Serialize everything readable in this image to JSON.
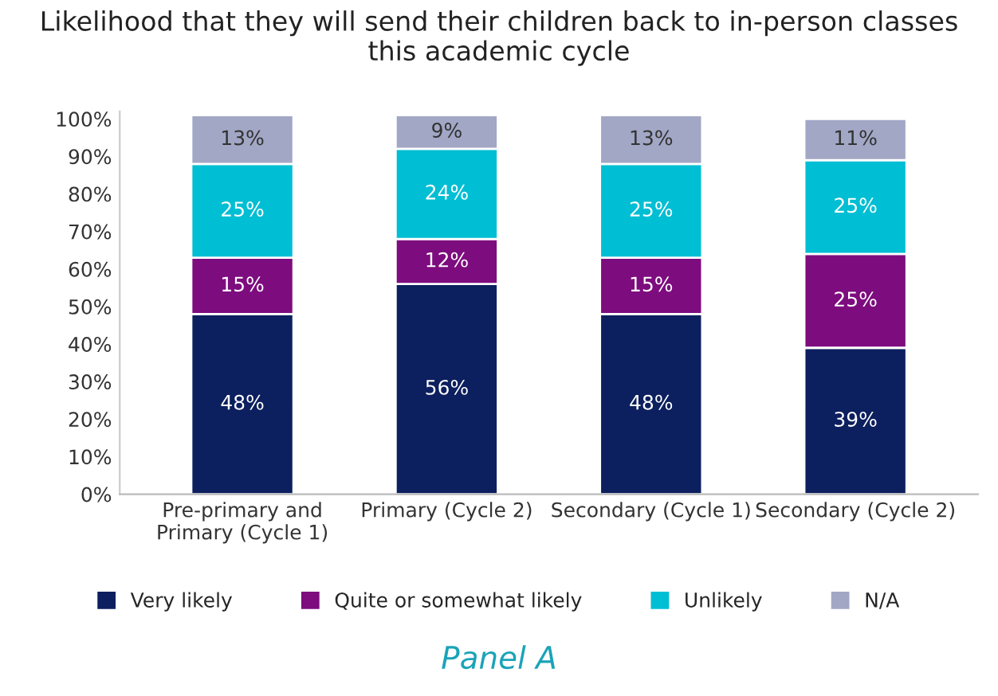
{
  "chart_data": {
    "type": "bar",
    "stacked": true,
    "title": "Likelihood that they will send their children back to in-person classes\nthis academic cycle",
    "categories": [
      "Pre-primary and\nPrimary (Cycle 1)",
      "Primary (Cycle 2)",
      "Secondary (Cycle 1)",
      "Secondary (Cycle 2)"
    ],
    "series": [
      {
        "name": "Very likely",
        "color": "#0c1f5e",
        "values": [
          48,
          56,
          48,
          39
        ],
        "value_labels": [
          "48%",
          "56%",
          "48%",
          "39%"
        ]
      },
      {
        "name": "Quite or somewhat likely",
        "color": "#7d0c7e",
        "values": [
          15,
          12,
          15,
          25
        ],
        "value_labels": [
          "15%",
          "12%",
          "15%",
          "25%"
        ]
      },
      {
        "name": "Unlikely",
        "color": "#00bed3",
        "values": [
          25,
          24,
          25,
          25
        ],
        "value_labels": [
          "25%",
          "24%",
          "25%",
          "25%"
        ]
      },
      {
        "name": "N/A",
        "color": "#a2a7c5",
        "values": [
          13,
          9,
          13,
          11
        ],
        "value_labels": [
          "13%",
          "9%",
          "13%",
          "11%"
        ]
      }
    ],
    "ylim": [
      0,
      102
    ],
    "yticks": [
      {
        "value": 0,
        "label": "0%"
      },
      {
        "value": 10,
        "label": "10%"
      },
      {
        "value": 20,
        "label": "20%"
      },
      {
        "value": 30,
        "label": "30%"
      },
      {
        "value": 40,
        "label": "40%"
      },
      {
        "value": 50,
        "label": "50%"
      },
      {
        "value": 60,
        "label": "60%"
      },
      {
        "value": 70,
        "label": "70%"
      },
      {
        "value": 80,
        "label": "80%"
      },
      {
        "value": 90,
        "label": "90%"
      },
      {
        "value": 100,
        "label": "100%"
      }
    ],
    "grid": false,
    "legend": "bottom",
    "annotations": [
      "Panel A"
    ]
  }
}
